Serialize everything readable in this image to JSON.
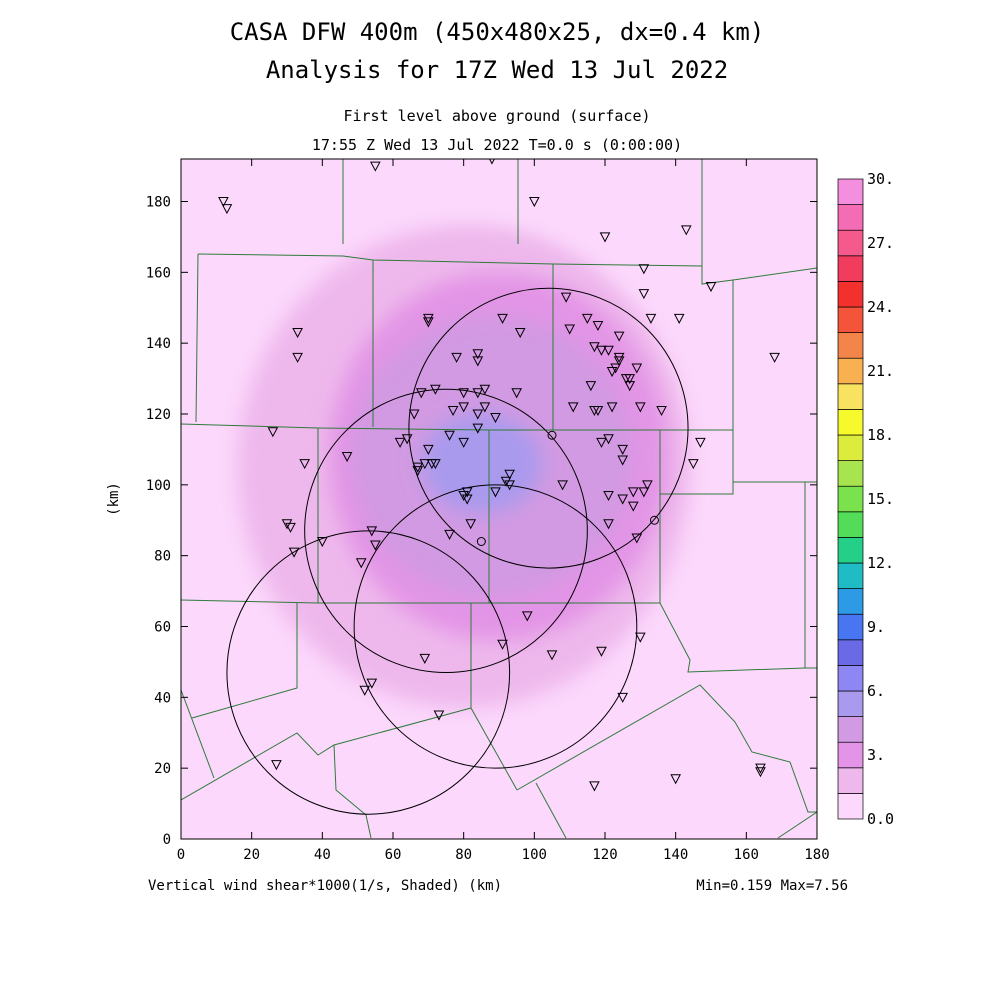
{
  "title_line1": "CASA DFW 400m (450x480x25, dx=0.4 km)",
  "title_line2": "Analysis for 17Z Wed 13 Jul 2022",
  "subtitle_level": "First level above ground (surface)",
  "subtitle_time": "17:55 Z Wed 13 Jul 2022   T=0.0 s (0:00:00)",
  "footer_left": "Vertical wind shear*1000(1/s, Shaded)  (km)",
  "footer_right": "Min=0.159 Max=7.56",
  "chart_data": {
    "type": "heatmap",
    "variable": "Vertical wind shear*1000 (1/s)",
    "ylabel": "(km)",
    "xlim": [
      0,
      180
    ],
    "ylim": [
      0,
      192
    ],
    "x_ticks": [
      0,
      20,
      40,
      60,
      80,
      100,
      120,
      140,
      160,
      180
    ],
    "y_ticks": [
      0,
      20,
      40,
      60,
      80,
      100,
      120,
      140,
      160,
      180
    ],
    "min": 0.159,
    "max": 7.56,
    "colorbar": {
      "levels": [
        0,
        1.5,
        3,
        4.5,
        6,
        7.5,
        9,
        10.5,
        12,
        13.5,
        15,
        16.5,
        18,
        19.5,
        21,
        22.5,
        24,
        25.5,
        27,
        28.5,
        30
      ],
      "labels": [
        "0.0",
        "3.",
        "6.",
        "9.",
        "12.",
        "15.",
        "18.",
        "21.",
        "24.",
        "27.",
        "30."
      ],
      "colors": [
        "#fcd8fc",
        "#eeb8ec",
        "#e394e6",
        "#d29ae2",
        "#a99aee",
        "#8e86f2",
        "#6a6ae6",
        "#4876f2",
        "#2c9ae4",
        "#20bcc6",
        "#24d088",
        "#52dc58",
        "#7ae24c",
        "#a8e450",
        "#dcec3c",
        "#f6fa2c",
        "#f8e260",
        "#f8b050",
        "#f4854a",
        "#f4553a",
        "#f2302e",
        "#f23c5e",
        "#f45a8c",
        "#f46cb4",
        "#f48ede"
      ],
      "colors_used": 20
    },
    "field_blobs": [
      {
        "cx": 80,
        "cy": 105,
        "rx": 64,
        "ry": 68,
        "value": 1.5
      },
      {
        "cx": 85,
        "cy": 108,
        "rx": 54,
        "ry": 62,
        "value": 2.2
      },
      {
        "cx": 90,
        "cy": 108,
        "rx": 48,
        "ry": 52,
        "value": 3.2
      },
      {
        "cx": 88,
        "cy": 108,
        "rx": 40,
        "ry": 40,
        "value": 4.6
      },
      {
        "cx": 90,
        "cy": 108,
        "rx": 32,
        "ry": 28,
        "value": 5.6
      },
      {
        "cx": 85,
        "cy": 106,
        "rx": 17,
        "ry": 14,
        "value": 6.6
      }
    ],
    "radar_rings": [
      {
        "cx": 104,
        "cy": 116,
        "r": 39.5
      },
      {
        "cx": 75,
        "cy": 87,
        "r": 40
      },
      {
        "cx": 89,
        "cy": 60,
        "r": 40
      },
      {
        "cx": 53,
        "cy": 47,
        "r": 40
      }
    ],
    "stations": [
      [
        12,
        180
      ],
      [
        13,
        178
      ],
      [
        55,
        190
      ],
      [
        88,
        192
      ],
      [
        100,
        180
      ],
      [
        131,
        161
      ],
      [
        143,
        172
      ],
      [
        150,
        156
      ],
      [
        120,
        170
      ],
      [
        168,
        136
      ],
      [
        33,
        143
      ],
      [
        33,
        136
      ],
      [
        70,
        147
      ],
      [
        70,
        146
      ],
      [
        91,
        147
      ],
      [
        96,
        143
      ],
      [
        109,
        153
      ],
      [
        115,
        147
      ],
      [
        110,
        144
      ],
      [
        118,
        145
      ],
      [
        124,
        142
      ],
      [
        129,
        133
      ],
      [
        122,
        132
      ],
      [
        123,
        133
      ],
      [
        124,
        136
      ],
      [
        124,
        135
      ],
      [
        121,
        138
      ],
      [
        119,
        138
      ],
      [
        117,
        139
      ],
      [
        131,
        154
      ],
      [
        133,
        147
      ],
      [
        141,
        147
      ],
      [
        78,
        136
      ],
      [
        84,
        137
      ],
      [
        84,
        135
      ],
      [
        68,
        126
      ],
      [
        72,
        127
      ],
      [
        86,
        127
      ],
      [
        80,
        126
      ],
      [
        84,
        126
      ],
      [
        80,
        122
      ],
      [
        77,
        121
      ],
      [
        84,
        120
      ],
      [
        86,
        122
      ],
      [
        89,
        119
      ],
      [
        95,
        126
      ],
      [
        116,
        128
      ],
      [
        118,
        121
      ],
      [
        117,
        121
      ],
      [
        111,
        122
      ],
      [
        122,
        122
      ],
      [
        130,
        122
      ],
      [
        127,
        130
      ],
      [
        127,
        128
      ],
      [
        126,
        130
      ],
      [
        66,
        120
      ],
      [
        64,
        113
      ],
      [
        70,
        110
      ],
      [
        80,
        112
      ],
      [
        76,
        114
      ],
      [
        84,
        116
      ],
      [
        62,
        112
      ],
      [
        67,
        105
      ],
      [
        67,
        104
      ],
      [
        69,
        106
      ],
      [
        72,
        106
      ],
      [
        71,
        106
      ],
      [
        47,
        108
      ],
      [
        26,
        115
      ],
      [
        35,
        106
      ],
      [
        119,
        112
      ],
      [
        121,
        113
      ],
      [
        125,
        107
      ],
      [
        125,
        110
      ],
      [
        147,
        112
      ],
      [
        145,
        106
      ],
      [
        132,
        100
      ],
      [
        128,
        98
      ],
      [
        131,
        98
      ],
      [
        121,
        97
      ],
      [
        125,
        96
      ],
      [
        128,
        94
      ],
      [
        93,
        103
      ],
      [
        92,
        101
      ],
      [
        93,
        100
      ],
      [
        89,
        98
      ],
      [
        81,
        98
      ],
      [
        80,
        97
      ],
      [
        81,
        96
      ],
      [
        108,
        100
      ],
      [
        30,
        89
      ],
      [
        31,
        88
      ],
      [
        32,
        81
      ],
      [
        40,
        84
      ],
      [
        54,
        87
      ],
      [
        55,
        83
      ],
      [
        51,
        78
      ],
      [
        76,
        86
      ],
      [
        82,
        89
      ],
      [
        121,
        89
      ],
      [
        129,
        85
      ],
      [
        136,
        121
      ],
      [
        98,
        63
      ],
      [
        91,
        55
      ],
      [
        105,
        52
      ],
      [
        119,
        53
      ],
      [
        130,
        57
      ],
      [
        125,
        40
      ],
      [
        69,
        51
      ],
      [
        54,
        44
      ],
      [
        52,
        42
      ],
      [
        73,
        35
      ],
      [
        27,
        21
      ],
      [
        117,
        15
      ],
      [
        140,
        17
      ],
      [
        164,
        20
      ],
      [
        164,
        19
      ]
    ],
    "open_circles": [
      [
        105,
        114
      ],
      [
        134,
        90
      ],
      [
        85,
        84
      ]
    ]
  }
}
